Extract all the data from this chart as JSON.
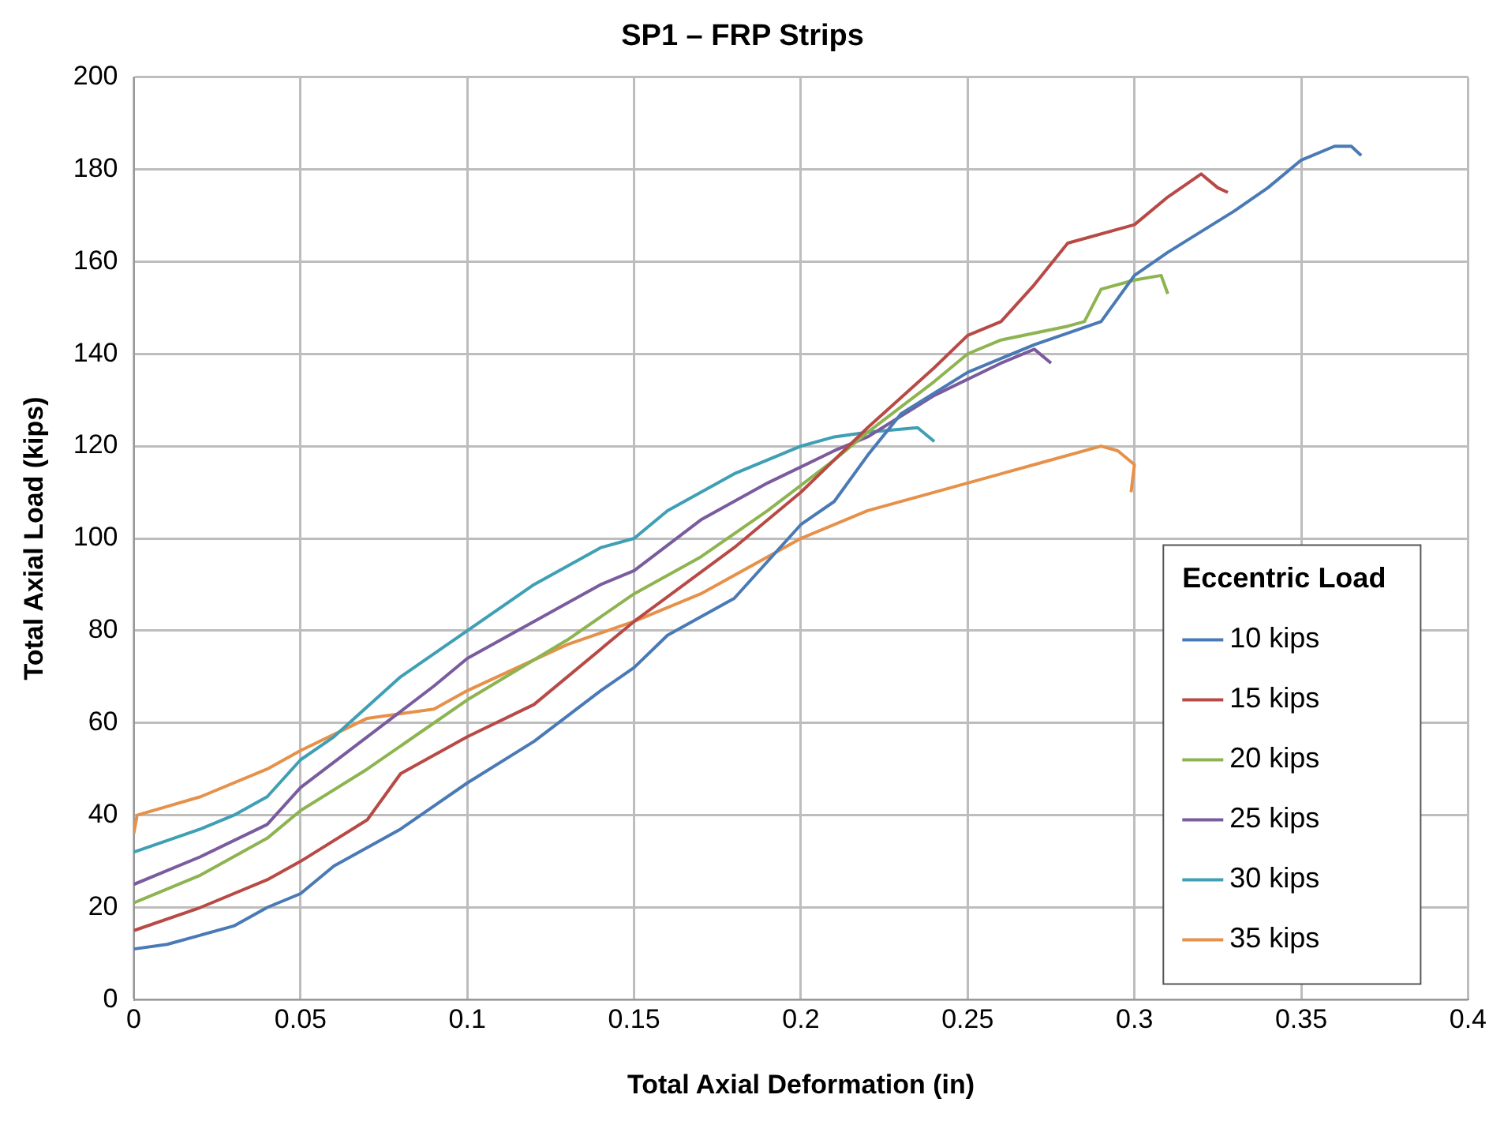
{
  "chart_data": {
    "type": "line",
    "title": "SP1 – FRP Strips",
    "xlabel": "Total Axial Deformation (in)",
    "ylabel": "Total Axial Load (kips)",
    "legend_title": "Eccentric Load",
    "legend": "bottom right",
    "grid": true,
    "marker": "none",
    "line_style": "solid",
    "xlim": [
      0,
      0.4
    ],
    "xticks": [
      0,
      0.05,
      0.1,
      0.15,
      0.2,
      0.25,
      0.3,
      0.35,
      0.4
    ],
    "ylim": [
      0,
      200
    ],
    "yticks": [
      0,
      20,
      40,
      60,
      80,
      100,
      120,
      140,
      160,
      180,
      200
    ],
    "series": [
      {
        "name": "10 kips",
        "color": "#4a7ab5",
        "x": [
          0,
          0.01,
          0.02,
          0.03,
          0.04,
          0.05,
          0.06,
          0.08,
          0.1,
          0.12,
          0.14,
          0.15,
          0.16,
          0.18,
          0.2,
          0.21,
          0.22,
          0.23,
          0.25,
          0.27,
          0.29,
          0.3,
          0.31,
          0.33,
          0.34,
          0.35,
          0.36,
          0.365,
          0.368
        ],
        "values": [
          11,
          12,
          14,
          16,
          20,
          23,
          29,
          37,
          47,
          56,
          67,
          72,
          79,
          87,
          103,
          108,
          118,
          127,
          136,
          142,
          147,
          157,
          162,
          171,
          176,
          182,
          185,
          185,
          183
        ]
      },
      {
        "name": "15 kips",
        "color": "#b84a46",
        "x": [
          0,
          0.02,
          0.04,
          0.05,
          0.07,
          0.075,
          0.08,
          0.1,
          0.12,
          0.15,
          0.18,
          0.2,
          0.22,
          0.24,
          0.25,
          0.26,
          0.27,
          0.28,
          0.3,
          0.31,
          0.32,
          0.325,
          0.328
        ],
        "values": [
          15,
          20,
          26,
          30,
          39,
          44,
          49,
          57,
          64,
          82,
          98,
          110,
          124,
          137,
          144,
          147,
          155,
          164,
          168,
          174,
          179,
          176,
          175
        ]
      },
      {
        "name": "20 kips",
        "color": "#8db450",
        "x": [
          0,
          0.02,
          0.04,
          0.05,
          0.07,
          0.09,
          0.1,
          0.13,
          0.15,
          0.17,
          0.19,
          0.21,
          0.22,
          0.24,
          0.25,
          0.26,
          0.28,
          0.285,
          0.29,
          0.3,
          0.308,
          0.31
        ],
        "values": [
          21,
          27,
          35,
          41,
          50,
          60,
          65,
          78,
          88,
          96,
          106,
          117,
          123,
          134,
          140,
          143,
          146,
          147,
          154,
          156,
          157,
          153
        ]
      },
      {
        "name": "25 kips",
        "color": "#7a5b9e",
        "x": [
          0,
          0.02,
          0.04,
          0.05,
          0.07,
          0.09,
          0.1,
          0.12,
          0.14,
          0.15,
          0.17,
          0.19,
          0.21,
          0.22,
          0.24,
          0.26,
          0.27,
          0.275
        ],
        "values": [
          25,
          31,
          38,
          46,
          57,
          68,
          74,
          82,
          90,
          93,
          104,
          112,
          119,
          122,
          131,
          138,
          141,
          138
        ]
      },
      {
        "name": "30 kips",
        "color": "#3f9fb5",
        "x": [
          0,
          0.02,
          0.03,
          0.04,
          0.05,
          0.06,
          0.08,
          0.1,
          0.12,
          0.14,
          0.15,
          0.16,
          0.18,
          0.2,
          0.21,
          0.22,
          0.235,
          0.24
        ],
        "values": [
          32,
          37,
          40,
          44,
          52,
          57,
          70,
          80,
          90,
          98,
          100,
          106,
          114,
          120,
          122,
          123,
          124,
          121
        ]
      },
      {
        "name": "35 kips",
        "color": "#e6914a",
        "x": [
          0,
          0.001,
          0.02,
          0.04,
          0.05,
          0.07,
          0.09,
          0.1,
          0.13,
          0.15,
          0.17,
          0.19,
          0.2,
          0.22,
          0.25,
          0.27,
          0.29,
          0.295,
          0.3,
          0.299
        ],
        "values": [
          36,
          40,
          44,
          50,
          54,
          61,
          63,
          67,
          77,
          82,
          88,
          96,
          100,
          106,
          112,
          116,
          120,
          119,
          116,
          110
        ]
      }
    ]
  }
}
